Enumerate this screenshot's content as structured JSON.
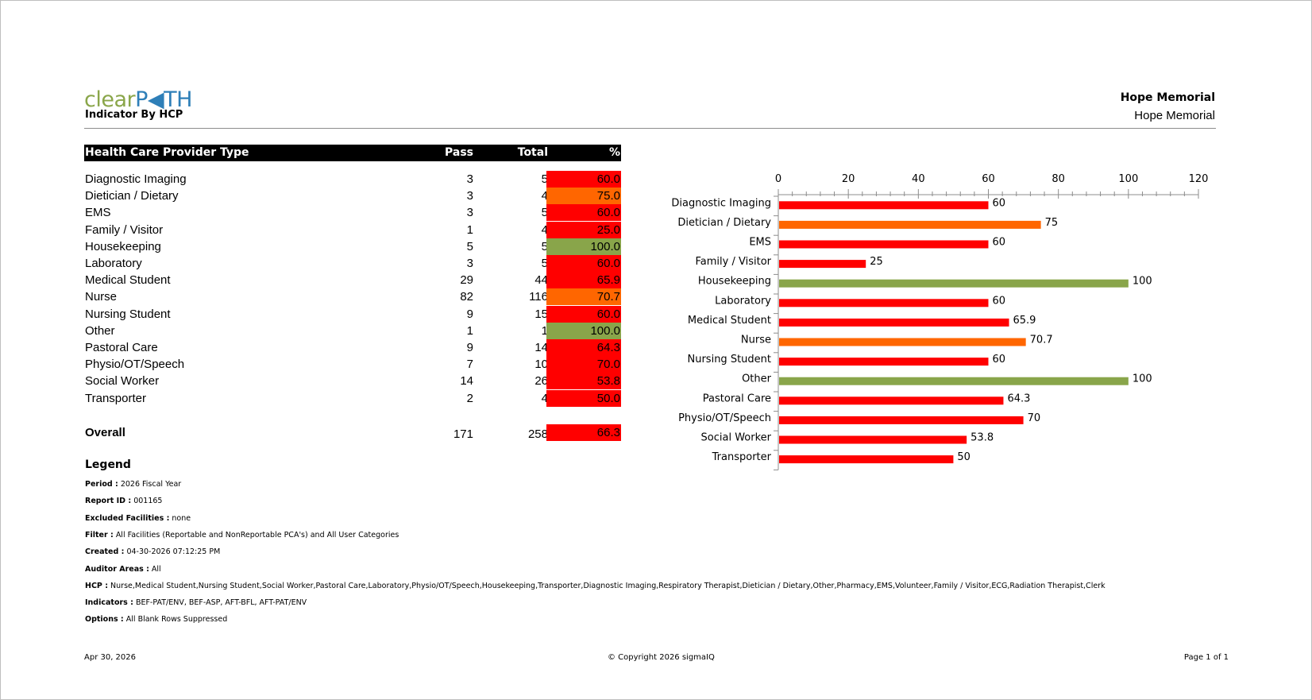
{
  "header": {
    "logo_clear": "clear",
    "logo_path": "P◀TH",
    "report_title": "Indicator By HCP",
    "hospital_bold": "Hope Memorial",
    "hospital": "Hope Memorial"
  },
  "table": {
    "columns": [
      "Health Care Provider Type",
      "Pass",
      "Total",
      "%"
    ],
    "rows": [
      {
        "name": "Diagnostic Imaging",
        "pass": "3",
        "total": "5",
        "pct": "60.0",
        "color": "#ff0000"
      },
      {
        "name": "Dietician / Dietary",
        "pass": "3",
        "total": "4",
        "pct": "75.0",
        "color": "#ff6600"
      },
      {
        "name": "EMS",
        "pass": "3",
        "total": "5",
        "pct": "60.0",
        "color": "#ff0000"
      },
      {
        "name": "Family / Visitor",
        "pass": "1",
        "total": "4",
        "pct": "25.0",
        "color": "#ff0000"
      },
      {
        "name": "Housekeeping",
        "pass": "5",
        "total": "5",
        "pct": "100.0",
        "color": "#89a54a"
      },
      {
        "name": "Laboratory",
        "pass": "3",
        "total": "5",
        "pct": "60.0",
        "color": "#ff0000"
      },
      {
        "name": "Medical Student",
        "pass": "29",
        "total": "44",
        "pct": "65.9",
        "color": "#ff0000"
      },
      {
        "name": "Nurse",
        "pass": "82",
        "total": "116",
        "pct": "70.7",
        "color": "#ff6600"
      },
      {
        "name": "Nursing Student",
        "pass": "9",
        "total": "15",
        "pct": "60.0",
        "color": "#ff0000"
      },
      {
        "name": "Other",
        "pass": "1",
        "total": "1",
        "pct": "100.0",
        "color": "#89a54a"
      },
      {
        "name": "Pastoral Care",
        "pass": "9",
        "total": "14",
        "pct": "64.3",
        "color": "#ff0000"
      },
      {
        "name": "Physio/OT/Speech",
        "pass": "7",
        "total": "10",
        "pct": "70.0",
        "color": "#ff0000"
      },
      {
        "name": "Social Worker",
        "pass": "14",
        "total": "26",
        "pct": "53.8",
        "color": "#ff0000"
      },
      {
        "name": "Transporter",
        "pass": "2",
        "total": "4",
        "pct": "50.0",
        "color": "#ff0000"
      }
    ],
    "overall": {
      "name": "Overall",
      "pass": "171",
      "total": "258",
      "pct": "66.3",
      "color": "#ff0000"
    }
  },
  "legend": {
    "title": "Legend",
    "items": [
      {
        "label": "Period :",
        "value": "2026 Fiscal Year"
      },
      {
        "label": "Report ID :",
        "value": "001165"
      },
      {
        "label": "Excluded Facilities :",
        "value": "none"
      },
      {
        "label": "Filter :",
        "value": "All Facilities (Reportable and NonReportable PCA's) and All User Categories"
      },
      {
        "label": "Created :",
        "value": "04-30-2026 07:12:25 PM"
      },
      {
        "label": "Auditor Areas :",
        "value": "All"
      },
      {
        "label": "HCP :",
        "value": "Nurse,Medical Student,Nursing Student,Social Worker,Pastoral Care,Laboratory,Physio/OT/Speech,Housekeeping,Transporter,Diagnostic Imaging,Respiratory Therapist,Dietician / Dietary,Other,Pharmacy,EMS,Volunteer,Family / Visitor,ECG,Radiation Therapist,Clerk"
      },
      {
        "label": "Indicators :",
        "value": "BEF-PAT/ENV, BEF-ASP, AFT-BFL, AFT-PAT/ENV"
      },
      {
        "label": "Options :",
        "value": "All Blank Rows Suppressed"
      }
    ]
  },
  "footer": {
    "date": "Apr 30, 2026",
    "copyright": "© Copyright 2026 sigmaIQ",
    "page": "Page 1 of 1"
  },
  "chart_data": {
    "type": "bar",
    "orientation": "horizontal",
    "categories": [
      "Diagnostic Imaging",
      "Dietician / Dietary",
      "EMS",
      "Family / Visitor",
      "Housekeeping",
      "Laboratory",
      "Medical Student",
      "Nurse",
      "Nursing Student",
      "Other",
      "Pastoral Care",
      "Physio/OT/Speech",
      "Social Worker",
      "Transporter"
    ],
    "values": [
      60,
      75,
      60,
      25,
      100,
      60,
      65.9,
      70.7,
      60,
      100,
      64.3,
      70,
      53.8,
      50
    ],
    "value_labels": [
      "60",
      "75",
      "60",
      "25",
      "100",
      "60",
      "65.9",
      "70.7",
      "60",
      "100",
      "64.3",
      "70",
      "53.8",
      "50"
    ],
    "colors": [
      "#ff0000",
      "#ff6600",
      "#ff0000",
      "#ff0000",
      "#89a54a",
      "#ff0000",
      "#ff0000",
      "#ff6600",
      "#ff0000",
      "#89a54a",
      "#ff0000",
      "#ff0000",
      "#ff0000",
      "#ff0000"
    ],
    "xlim": [
      0,
      120
    ],
    "xticks": [
      "0",
      "20",
      "40",
      "60",
      "80",
      "100",
      "120"
    ],
    "axis_position": "top",
    "title": "",
    "xlabel": "",
    "ylabel": ""
  }
}
